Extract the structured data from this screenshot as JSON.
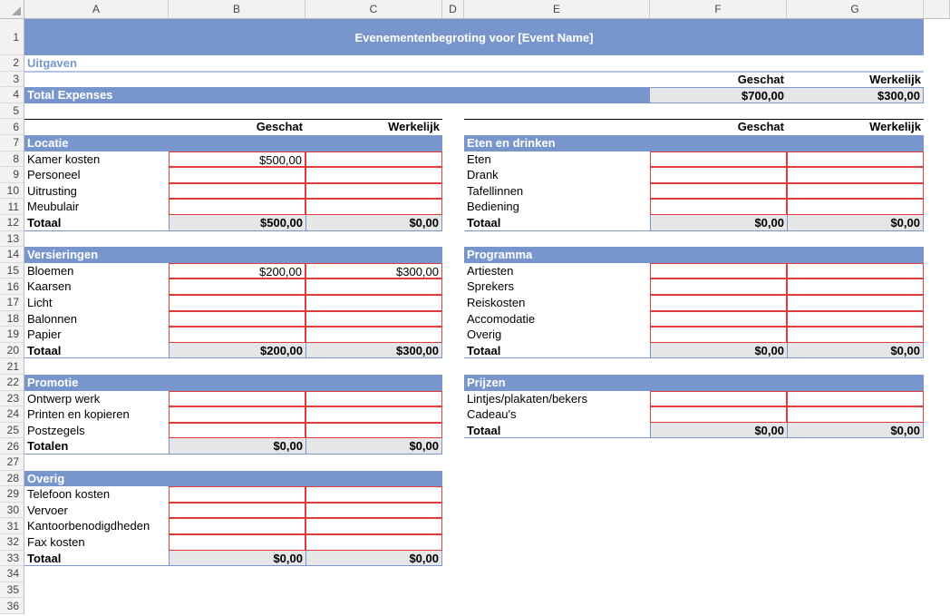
{
  "columns": [
    "A",
    "B",
    "C",
    "D",
    "E",
    "F",
    "G"
  ],
  "rows": [
    "1",
    "2",
    "3",
    "4",
    "5",
    "6",
    "7",
    "8",
    "9",
    "10",
    "11",
    "12",
    "13",
    "14",
    "15",
    "16",
    "17",
    "18",
    "19",
    "20",
    "21",
    "22",
    "23",
    "24",
    "25",
    "26",
    "27",
    "28",
    "29",
    "30",
    "31",
    "32",
    "33",
    "34",
    "35",
    "36"
  ],
  "colors": {
    "accent": "#7996cc",
    "total_fill": "#e6e6e6",
    "input_border": "#e03c3c"
  },
  "sheet": {
    "title": "Evenementenbegroting voor [Event Name]",
    "section_label": "Uitgaven",
    "head_estimated": "Geschat",
    "head_actual": "Werkelijk",
    "total_label": "Total Expenses",
    "total_estimated": "$700,00",
    "total_actual": "$300,00"
  },
  "left_sections": [
    {
      "name": "Locatie",
      "items": [
        {
          "label": "Kamer kosten",
          "est": "$500,00",
          "act": ""
        },
        {
          "label": "Personeel",
          "est": "",
          "act": ""
        },
        {
          "label": "Uitrusting",
          "est": "",
          "act": ""
        },
        {
          "label": "Meubulair",
          "est": "",
          "act": ""
        }
      ],
      "total_label": "Totaal",
      "total_est": "$500,00",
      "total_act": "$0,00"
    },
    {
      "name": "Versieringen",
      "items": [
        {
          "label": "Bloemen",
          "est": "$200,00",
          "act": "$300,00"
        },
        {
          "label": "Kaarsen",
          "est": "",
          "act": ""
        },
        {
          "label": "Licht",
          "est": "",
          "act": ""
        },
        {
          "label": "Balonnen",
          "est": "",
          "act": ""
        },
        {
          "label": "Papier",
          "est": "",
          "act": ""
        }
      ],
      "total_label": "Totaal",
      "total_est": "$200,00",
      "total_act": "$300,00"
    },
    {
      "name": "Promotie",
      "items": [
        {
          "label": "Ontwerp werk",
          "est": "",
          "act": ""
        },
        {
          "label": "Printen en kopieren",
          "est": "",
          "act": ""
        },
        {
          "label": "Postzegels",
          "est": "",
          "act": ""
        }
      ],
      "total_label": "Totalen",
      "total_est": "$0,00",
      "total_act": "$0,00"
    },
    {
      "name": "Overig",
      "items": [
        {
          "label": "Telefoon kosten",
          "est": "",
          "act": ""
        },
        {
          "label": "Vervoer",
          "est": "",
          "act": ""
        },
        {
          "label": "Kantoorbenodigdheden",
          "est": "",
          "act": ""
        },
        {
          "label": "Fax kosten",
          "est": "",
          "act": ""
        }
      ],
      "total_label": "Totaal",
      "total_est": "$0,00",
      "total_act": "$0,00"
    }
  ],
  "right_sections": [
    {
      "name": "Eten en drinken",
      "items": [
        {
          "label": "Eten",
          "est": "",
          "act": ""
        },
        {
          "label": "Drank",
          "est": "",
          "act": ""
        },
        {
          "label": "Tafellinnen",
          "est": "",
          "act": ""
        },
        {
          "label": "Bediening",
          "est": "",
          "act": ""
        }
      ],
      "total_label": "Totaal",
      "total_est": "$0,00",
      "total_act": "$0,00"
    },
    {
      "name": "Programma",
      "items": [
        {
          "label": "Artiesten",
          "est": "",
          "act": ""
        },
        {
          "label": "Sprekers",
          "est": "",
          "act": ""
        },
        {
          "label": "Reiskosten",
          "est": "",
          "act": ""
        },
        {
          "label": "Accomodatie",
          "est": "",
          "act": ""
        },
        {
          "label": "Overig",
          "est": "",
          "act": ""
        }
      ],
      "total_label": "Totaal",
      "total_est": "$0,00",
      "total_act": "$0,00"
    },
    {
      "name": "Prijzen",
      "items": [
        {
          "label": "Lintjes/plakaten/bekers",
          "est": "",
          "act": ""
        },
        {
          "label": "Cadeau's",
          "est": "",
          "act": ""
        }
      ],
      "total_label": "Totaal",
      "total_est": "$0,00",
      "total_act": "$0,00"
    }
  ]
}
